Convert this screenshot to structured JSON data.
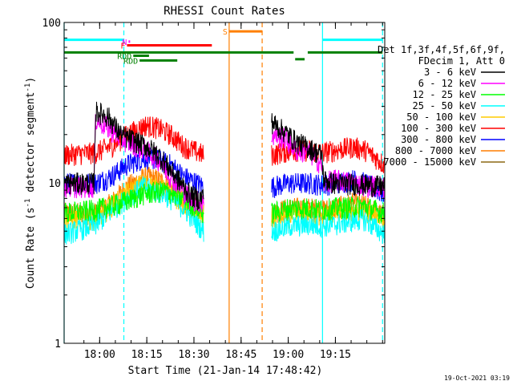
{
  "chart_data": {
    "type": "line",
    "title": "RHESSI Count Rates",
    "xlabel": "Start Time (21-Jan-14 17:48:42)",
    "ylabel_main": "Count Rate (s",
    "ylabel_exp1": "-1",
    "ylabel_mid": " detector segment",
    "ylabel_exp2": "-1",
    "ylabel_end": ")",
    "x_unit": "minutes since 17:48:42",
    "xlim": [
      0,
      102
    ],
    "ylim": [
      1,
      100
    ],
    "y_scale": "log",
    "x_ticks": [
      {
        "label": "18:00",
        "value": 11.3
      },
      {
        "label": "18:15",
        "value": 26.3
      },
      {
        "label": "18:30",
        "value": 41.3
      },
      {
        "label": "18:45",
        "value": 56.3
      },
      {
        "label": "19:00",
        "value": 71.3
      },
      {
        "label": "19:15",
        "value": 86.3
      }
    ],
    "y_ticks": [
      {
        "label": "1",
        "value": 1
      },
      {
        "label": "10",
        "value": 10
      },
      {
        "label": "100",
        "value": 100
      }
    ],
    "legend_header": [
      "Det 1f,3f,4f,5f,6f,9f,",
      "FDecim 1, Att 0"
    ],
    "legend_position": "right",
    "series": [
      {
        "name": "3 - 6 keV",
        "color": "#000000",
        "values": [
          [
            0,
            10
          ],
          [
            9.5,
            10
          ],
          [
            10,
            28
          ],
          [
            14,
            26
          ],
          [
            18,
            20
          ],
          [
            26,
            17
          ],
          [
            30,
            15
          ],
          [
            34,
            12
          ],
          [
            40,
            8.5
          ],
          [
            43,
            7.9
          ],
          [
            44.5,
            8.5
          ]
        ],
        "values2": [
          [
            66,
            24
          ],
          [
            70,
            21
          ],
          [
            74,
            18
          ],
          [
            78,
            16.5
          ],
          [
            82,
            15
          ],
          [
            82.5,
            10.5
          ],
          [
            86,
            10
          ],
          [
            95,
            9.8
          ],
          [
            102,
            9.5
          ]
        ]
      },
      {
        "name": "6 - 12 keV",
        "color": "#ff00ff",
        "values": [
          [
            0,
            9.5
          ],
          [
            9.5,
            9.5
          ],
          [
            10,
            25
          ],
          [
            14,
            22
          ],
          [
            18,
            19
          ],
          [
            26,
            16
          ],
          [
            30,
            14
          ],
          [
            34,
            11
          ],
          [
            40,
            8
          ],
          [
            44.5,
            7.5
          ]
        ],
        "values2": [
          [
            66,
            20
          ],
          [
            70,
            19
          ],
          [
            74,
            16
          ],
          [
            78,
            15.5
          ],
          [
            82,
            13
          ],
          [
            82.5,
            10
          ],
          [
            86,
            10.5
          ],
          [
            95,
            9.8
          ],
          [
            102,
            9.4
          ]
        ]
      },
      {
        "name": "12 - 25 keV",
        "color": "#00ff00",
        "values": [
          [
            0,
            6.5
          ],
          [
            10,
            6.8
          ],
          [
            18,
            7.5
          ],
          [
            25,
            8.5
          ],
          [
            32,
            9
          ],
          [
            38,
            8
          ],
          [
            44.5,
            6.5
          ]
        ],
        "values2": [
          [
            66,
            6.5
          ],
          [
            72,
            7
          ],
          [
            78,
            7
          ],
          [
            82,
            6.8
          ],
          [
            86,
            7
          ],
          [
            95,
            7.2
          ],
          [
            102,
            6.5
          ]
        ]
      },
      {
        "name": "25 - 50 keV",
        "color": "#00ffff",
        "values": [
          [
            0,
            4.8
          ],
          [
            10,
            5.5
          ],
          [
            18,
            7.5
          ],
          [
            25,
            9.5
          ],
          [
            32,
            8.5
          ],
          [
            38,
            7
          ],
          [
            44.5,
            5
          ]
        ],
        "values2": [
          [
            66,
            5
          ],
          [
            72,
            5.4
          ],
          [
            78,
            5.5
          ],
          [
            82,
            5.4
          ],
          [
            86,
            5.5
          ],
          [
            95,
            6
          ],
          [
            102,
            4.8
          ]
        ]
      },
      {
        "name": "50 - 100 keV",
        "color": "#ffcc00",
        "values": [
          [
            0,
            6
          ],
          [
            10,
            6
          ],
          [
            18,
            8
          ],
          [
            25,
            10
          ],
          [
            32,
            9
          ],
          [
            38,
            7.5
          ],
          [
            44.5,
            6
          ]
        ],
        "values2": [
          [
            66,
            6
          ],
          [
            72,
            6.2
          ],
          [
            78,
            6.3
          ],
          [
            82,
            6.2
          ],
          [
            86,
            6.5
          ],
          [
            95,
            6.8
          ],
          [
            102,
            6
          ]
        ]
      },
      {
        "name": "100 - 300 keV",
        "color": "#ff0000",
        "values": [
          [
            0,
            15
          ],
          [
            10,
            15.5
          ],
          [
            15,
            17
          ],
          [
            20,
            20
          ],
          [
            26,
            23
          ],
          [
            30,
            22
          ],
          [
            34,
            20
          ],
          [
            38,
            17
          ],
          [
            44.5,
            15
          ]
        ],
        "values2": [
          [
            66,
            15
          ],
          [
            72,
            16
          ],
          [
            78,
            16
          ],
          [
            82,
            15.5
          ],
          [
            86,
            16
          ],
          [
            92,
            16.8
          ],
          [
            96,
            16
          ],
          [
            102,
            13
          ]
        ]
      },
      {
        "name": "300 - 800 keV",
        "color": "#0000ff",
        "values": [
          [
            0,
            10
          ],
          [
            10,
            10
          ],
          [
            15,
            11
          ],
          [
            20,
            13
          ],
          [
            26,
            14.5
          ],
          [
            30,
            14
          ],
          [
            34,
            13
          ],
          [
            38,
            11
          ],
          [
            44.5,
            9.5
          ]
        ],
        "values2": [
          [
            66,
            9.5
          ],
          [
            72,
            10
          ],
          [
            78,
            10
          ],
          [
            82,
            9.8
          ],
          [
            86,
            10
          ],
          [
            92,
            10.5
          ],
          [
            96,
            10
          ],
          [
            102,
            8.5
          ]
        ]
      },
      {
        "name": "800 - 7000 keV",
        "color": "#ff7f00",
        "values": [
          [
            0,
            6.5
          ],
          [
            10,
            6.5
          ],
          [
            15,
            7.5
          ],
          [
            20,
            9.5
          ],
          [
            26,
            11
          ],
          [
            30,
            10.5
          ],
          [
            34,
            9.5
          ],
          [
            38,
            8
          ],
          [
            44.5,
            6.8
          ]
        ],
        "values2": [
          [
            66,
            6.5
          ],
          [
            72,
            7
          ],
          [
            78,
            7
          ],
          [
            82,
            6.8
          ],
          [
            86,
            7
          ],
          [
            92,
            7.5
          ],
          [
            96,
            7.2
          ],
          [
            102,
            6.2
          ]
        ]
      },
      {
        "name": "7000 - 15000 keV",
        "color": "#8b6914",
        "values": [],
        "values2": []
      }
    ],
    "vlines": [
      {
        "x": 0.0,
        "color": "#00ffff",
        "style": "solid"
      },
      {
        "x": 19.0,
        "color": "#00ffff",
        "style": "dashed"
      },
      {
        "x": 52.5,
        "color": "#ff7f00",
        "style": "solid"
      },
      {
        "x": 63.0,
        "color": "#ff7f00",
        "style": "dashed"
      },
      {
        "x": 82.2,
        "color": "#00ffff",
        "style": "solid"
      },
      {
        "x": 101.3,
        "color": "#00ffff",
        "style": "dashed"
      }
    ],
    "flag_bars": [
      {
        "label": "",
        "color": "#00ffff",
        "x0": 0,
        "x1": 18.8,
        "y": 78
      },
      {
        "label": "",
        "color": "#00ffff",
        "x0": 82.2,
        "x1": 101.3,
        "y": 78
      },
      {
        "label": "N",
        "color": "#ff00ff",
        "x0": 20.5,
        "x1": 21.0,
        "y": 76
      },
      {
        "label": "F",
        "color": "#ff0000",
        "x0": 20.0,
        "x1": 47.0,
        "y": 72
      },
      {
        "label": "S",
        "color": "#ff7f00",
        "x0": 52.5,
        "x1": 63.0,
        "y": 88
      },
      {
        "label": "",
        "color": "#008000",
        "x0": 0,
        "x1": 73.0,
        "y": 65
      },
      {
        "label": "",
        "color": "#008000",
        "x0": 77.5,
        "x1": 101.3,
        "y": 65
      },
      {
        "label": "",
        "color": "#008000",
        "x0": 73.5,
        "x1": 76.5,
        "y": 59
      },
      {
        "label": "RDD",
        "color": "#008000",
        "x0": 22.0,
        "x1": 27.0,
        "y": 62
      },
      {
        "label": "RDD",
        "color": "#008000",
        "x0": 24.0,
        "x1": 36.0,
        "y": 58
      }
    ],
    "footer_date": "19-Oct-2021 03:19"
  }
}
